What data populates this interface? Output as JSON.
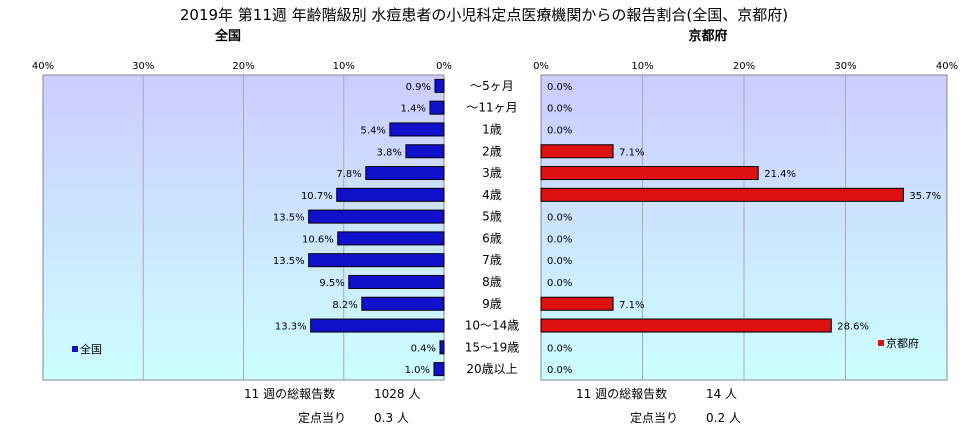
{
  "title": "2019年 第11週 年齢階級別 水痘患者の小児科定点医療機関からの報告割合(全国、京都府)",
  "colors": {
    "national_bar": "#1111CC",
    "kyoto_bar": "#DD1111",
    "plot_top": "#CCCCFF",
    "plot_bottom": "#CCFFFF"
  },
  "chart_data": [
    {
      "type": "bar",
      "orientation": "horizontal",
      "direction": "right-to-left",
      "panel_title": "全国",
      "categories": [
        "〜5ヶ月",
        "〜11ヶ月",
        "1歳",
        "2歳",
        "3歳",
        "4歳",
        "5歳",
        "6歳",
        "7歳",
        "8歳",
        "9歳",
        "10〜14歳",
        "15〜19歳",
        "20歳以上"
      ],
      "values": [
        0.9,
        1.4,
        5.4,
        3.8,
        7.8,
        10.7,
        13.5,
        10.6,
        13.5,
        9.5,
        8.2,
        13.3,
        0.4,
        1.0
      ],
      "data_labels": [
        "0.9%",
        "1.4%",
        "5.4%",
        "3.8%",
        "7.8%",
        "10.7%",
        "13.5%",
        "10.6%",
        "13.5%",
        "9.5%",
        "8.2%",
        "13.3%",
        "0.4%",
        "1.0%"
      ],
      "x_ticks": [
        "40%",
        "30%",
        "20%",
        "10%",
        "0%"
      ],
      "xlim": [
        0,
        40
      ],
      "grid": true,
      "legend": "全国",
      "legend_position": "left",
      "total_label": "11 週の総報告数",
      "total_value": "1028 人",
      "per_site_label": "定点当り",
      "per_site_value": "0.3 人"
    },
    {
      "type": "bar",
      "orientation": "horizontal",
      "direction": "left-to-right",
      "panel_title": "京都府",
      "categories": [
        "〜5ヶ月",
        "〜11ヶ月",
        "1歳",
        "2歳",
        "3歳",
        "4歳",
        "5歳",
        "6歳",
        "7歳",
        "8歳",
        "9歳",
        "10〜14歳",
        "15〜19歳",
        "20歳以上"
      ],
      "values": [
        0.0,
        0.0,
        0.0,
        7.1,
        21.4,
        35.7,
        0.0,
        0.0,
        0.0,
        0.0,
        7.1,
        28.6,
        0.0,
        0.0
      ],
      "data_labels": [
        "0.0%",
        "0.0%",
        "0.0%",
        "7.1%",
        "21.4%",
        "35.7%",
        "0.0%",
        "0.0%",
        "0.0%",
        "0.0%",
        "7.1%",
        "28.6%",
        "0.0%",
        "0.0%"
      ],
      "x_ticks": [
        "0%",
        "10%",
        "20%",
        "30%",
        "40%"
      ],
      "xlim": [
        0,
        40
      ],
      "grid": true,
      "legend": "京都府",
      "legend_position": "right",
      "total_label": "11 週の総報告数",
      "total_value": "14 人",
      "per_site_label": "定点当り",
      "per_site_value": "0.2 人"
    }
  ]
}
